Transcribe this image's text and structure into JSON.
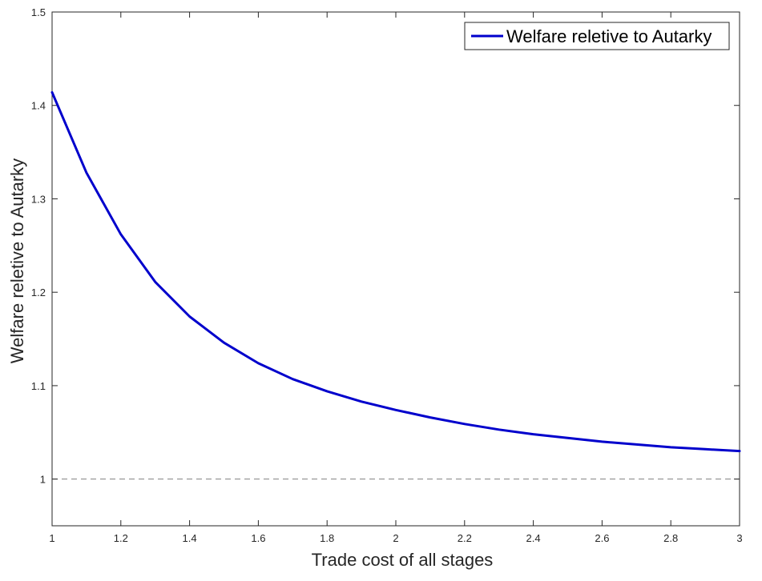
{
  "chart_data": {
    "type": "line",
    "xlabel": "Trade cost of all stages",
    "ylabel": "Welfare reletive to Autarky",
    "xlim": [
      1,
      3
    ],
    "ylim": [
      0.95,
      1.5
    ],
    "xticks": [
      1,
      1.2,
      1.4,
      1.6,
      1.8,
      2,
      2.2,
      2.4,
      2.6,
      2.8,
      3
    ],
    "xtick_labels": [
      "1",
      "1.2",
      "1.4",
      "1.6",
      "1.8",
      "2",
      "2.2",
      "2.4",
      "2.6",
      "2.8",
      "3"
    ],
    "yticks": [
      1,
      1.1,
      1.2,
      1.3,
      1.4,
      1.5
    ],
    "ytick_labels": [
      "1",
      "1.1",
      "1.2",
      "1.3",
      "1.4",
      "1.5"
    ],
    "grid": false,
    "legend_position": "top-right",
    "reference_line": {
      "y": 1,
      "style": "dashed",
      "color": "#808080"
    },
    "series": [
      {
        "name": "Welfare reletive to Autarky",
        "color": "#0000cc",
        "x": [
          1.0,
          1.1,
          1.2,
          1.3,
          1.4,
          1.5,
          1.6,
          1.7,
          1.8,
          1.9,
          2.0,
          2.1,
          2.2,
          2.3,
          2.4,
          2.5,
          2.6,
          2.7,
          2.8,
          2.9,
          3.0
        ],
        "y": [
          1.414,
          1.328,
          1.262,
          1.211,
          1.174,
          1.146,
          1.124,
          1.107,
          1.094,
          1.083,
          1.074,
          1.066,
          1.059,
          1.053,
          1.048,
          1.044,
          1.04,
          1.037,
          1.034,
          1.032,
          1.03
        ]
      }
    ]
  }
}
